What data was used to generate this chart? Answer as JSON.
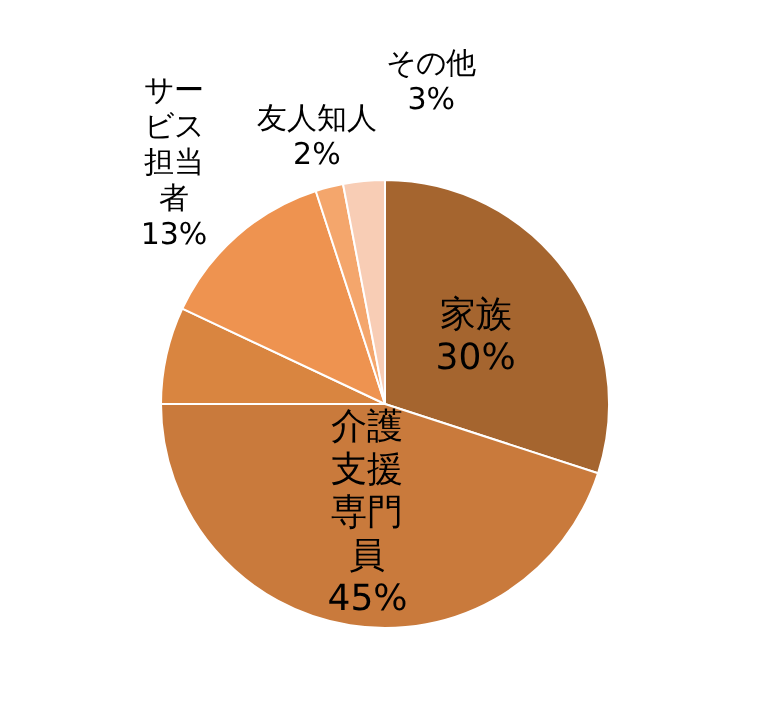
{
  "chart_data": {
    "type": "pie",
    "categories": [
      "家族",
      "介護支援専門員",
      null,
      "サービス担当者",
      "友人知人",
      "その他"
    ],
    "values": [
      30,
      45,
      7,
      13,
      2,
      3
    ],
    "value_labels": [
      "30%",
      "45%",
      null,
      "13%",
      "2%",
      "3%"
    ],
    "colors": [
      "#a5652f",
      "#c97a3c",
      "#d98540",
      "#ee9350",
      "#f4a66c",
      "#f8cdb5"
    ],
    "legend": false
  }
}
